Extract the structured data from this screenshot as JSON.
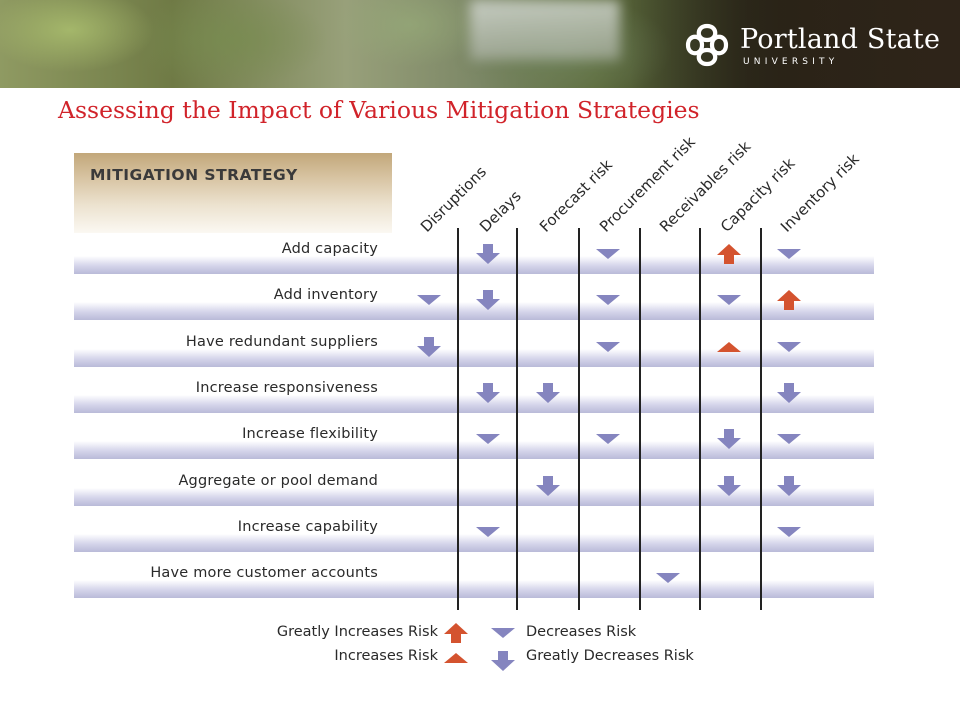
{
  "header": {
    "brand_name": "Portland State",
    "brand_sub": "UNIVERSITY",
    "logo": "psu-logo-icon"
  },
  "slide": {
    "title": "Assessing the Impact of Various Mitigation Strategies"
  },
  "table": {
    "header_label": "MITIGATION STRATEGY",
    "columns": [
      "Disruptions",
      "Delays",
      "Forecast risk",
      "Procurement risk",
      "Receivables risk",
      "Capacity risk",
      "Inventory risk"
    ],
    "rows": [
      {
        "label": "Add capacity",
        "effects": [
          "",
          "greatly-decreases",
          "",
          "decreases",
          "",
          "greatly-increases",
          "decreases"
        ]
      },
      {
        "label": "Add inventory",
        "effects": [
          "decreases",
          "greatly-decreases",
          "",
          "decreases",
          "",
          "decreases",
          "greatly-increases"
        ]
      },
      {
        "label": "Have redundant suppliers",
        "effects": [
          "greatly-decreases",
          "",
          "",
          "decreases",
          "",
          "increases",
          "decreases"
        ]
      },
      {
        "label": "Increase responsiveness",
        "effects": [
          "",
          "greatly-decreases",
          "greatly-decreases",
          "",
          "",
          "",
          "greatly-decreases"
        ]
      },
      {
        "label": "Increase flexibility",
        "effects": [
          "",
          "decreases",
          "",
          "decreases",
          "",
          "greatly-decreases",
          "decreases"
        ]
      },
      {
        "label": "Aggregate or pool demand",
        "effects": [
          "",
          "",
          "greatly-decreases",
          "",
          "",
          "greatly-decreases",
          "greatly-decreases"
        ]
      },
      {
        "label": "Increase capability",
        "effects": [
          "",
          "decreases",
          "",
          "",
          "",
          "",
          "decreases"
        ]
      },
      {
        "label": "Have more customer accounts",
        "effects": [
          "",
          "",
          "",
          "",
          "decreases",
          "",
          ""
        ]
      }
    ]
  },
  "legend": {
    "greatly_increases": "Greatly Increases Risk",
    "increases": "Increases Risk",
    "decreases": "Decreases Risk",
    "greatly_decreases": "Greatly Decreases Risk"
  },
  "colors": {
    "title": "#d1232a",
    "increase_arrow": "#d4532f",
    "decrease_arrow": "#8585bf"
  }
}
